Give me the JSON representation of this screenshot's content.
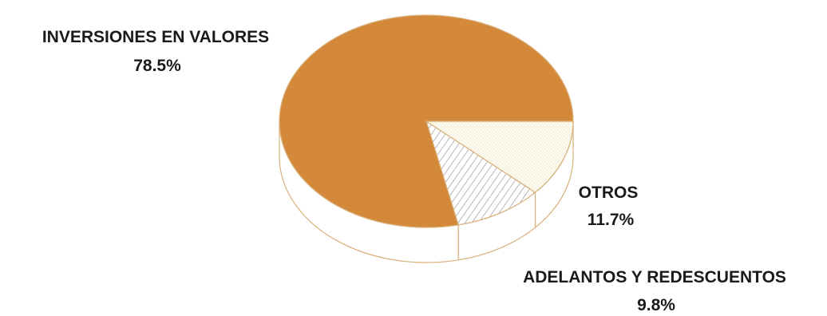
{
  "chart_data": {
    "type": "pie",
    "title": "",
    "style": "3d",
    "legend": "none",
    "slices": [
      {
        "label": "INVERSIONES EN VALORES",
        "value": 78.5,
        "value_label": "78.5%",
        "fill": "solid",
        "color": "#d4893a"
      },
      {
        "label": "ADELANTOS Y REDESCUENTOS",
        "value": 9.8,
        "value_label": "9.8%",
        "fill": "diagonal-hatch",
        "color": "#ffffff"
      },
      {
        "label": "OTROS",
        "value": 11.7,
        "value_label": "11.7%",
        "fill": "dotted",
        "color": "#fdfaef"
      }
    ]
  },
  "colors": {
    "main_fill": "#d4893a",
    "edge_line": "#d9b07a",
    "hatch_line": "#7a7a7a",
    "label_text": "#1a1a1a"
  }
}
